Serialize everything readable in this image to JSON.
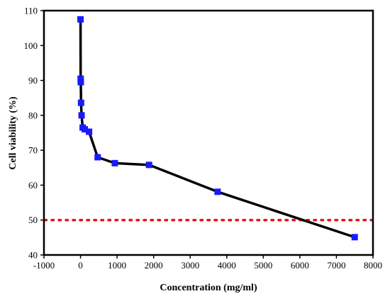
{
  "chart_data": {
    "type": "line",
    "title": "",
    "xlabel": "Concentration (mg/ml)",
    "ylabel": "Cell viability (%)",
    "xlim": [
      -1000,
      8000
    ],
    "ylim": [
      40,
      110
    ],
    "x_ticks": [
      -1000,
      0,
      1000,
      2000,
      3000,
      4000,
      5000,
      6000,
      7000,
      8000
    ],
    "y_ticks": [
      40,
      50,
      60,
      70,
      80,
      90,
      100,
      110
    ],
    "grid": false,
    "legend": "none",
    "series": [
      {
        "marker": "square",
        "color": "#1a1aff",
        "line_color": "#000000",
        "x": [
          0,
          3.66,
          7.32,
          14.6,
          29.3,
          58.6,
          117,
          234,
          469,
          938,
          1875,
          3750,
          7500
        ],
        "y": [
          107.5,
          90.5,
          89.5,
          83.6,
          80,
          76.5,
          76,
          75.3,
          68,
          66.3,
          65.8,
          58.1,
          45.1
        ]
      }
    ],
    "reference_lines": [
      {
        "orientation": "horizontal",
        "y": 50,
        "style": "dotted",
        "color": "#e8141a"
      }
    ]
  }
}
